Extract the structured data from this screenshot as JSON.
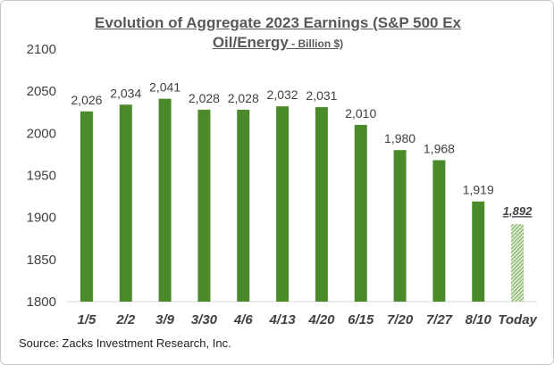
{
  "chart_data": {
    "type": "bar",
    "title_line1": "Evolution of Aggregate 2023 Earnings (S&P 500 Ex",
    "title_line2_main": "Oil/Energy",
    "title_line2_sub": " - Billion $)",
    "categories": [
      "1/5",
      "2/2",
      "3/9",
      "3/30",
      "4/6",
      "4/13",
      "4/20",
      "6/15",
      "7/20",
      "7/27",
      "8/10",
      "Today"
    ],
    "values": [
      2026,
      2034,
      2041,
      2028,
      2028,
      2032,
      2031,
      2010,
      1980,
      1968,
      1919,
      1892
    ],
    "data_labels": [
      "2,026",
      "2,034",
      "2,041",
      "2,028",
      "2,028",
      "2,032",
      "2,031",
      "2,010",
      "1,980",
      "1,968",
      "1,919",
      "1,892"
    ],
    "highlighted_category": "Today",
    "ylim": [
      1800,
      2100
    ],
    "yticks": [
      1800,
      1850,
      1900,
      1950,
      2000,
      2050,
      2100
    ],
    "grid": false,
    "xlabel": "",
    "ylabel": "",
    "colors": {
      "bar": "#4a8a2a",
      "highlight": "#6fa84a"
    }
  },
  "source": "Source: Zacks Investment Research, Inc."
}
